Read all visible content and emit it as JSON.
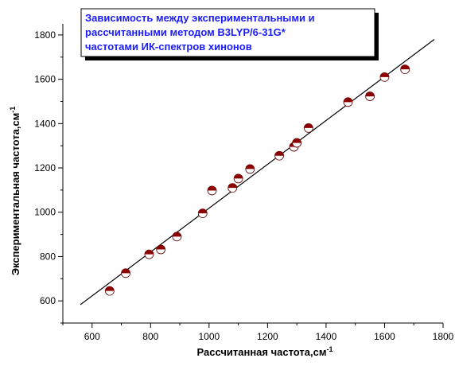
{
  "chart_data": {
    "type": "scatter",
    "title_lines": [
      "Зависимость между экспериментальными и",
      "рассчитанными методом B3LYP/6-31G*",
      "частотами ИК-спектров хинонов"
    ],
    "xlabel": "Рассчитанная частота,см",
    "xlabel_sup": "-1",
    "ylabel": "Экспериментальная частота,см",
    "ylabel_sup": "-1",
    "xlim": [
      500,
      1800
    ],
    "ylim": [
      500,
      1850
    ],
    "x_ticks": [
      600,
      800,
      1000,
      1200,
      1400,
      1600,
      1800
    ],
    "y_ticks": [
      600,
      800,
      1000,
      1200,
      1400,
      1600,
      1800
    ],
    "x_tick_labels": [
      "600",
      "800",
      "1000",
      "1200",
      "1400",
      "1600",
      "1800"
    ],
    "y_tick_labels": [
      "600",
      "800",
      "1000",
      "1200",
      "1400",
      "1600",
      "1800"
    ],
    "points": [
      {
        "x": 660,
        "y": 645
      },
      {
        "x": 715,
        "y": 725
      },
      {
        "x": 795,
        "y": 810
      },
      {
        "x": 835,
        "y": 832
      },
      {
        "x": 890,
        "y": 890
      },
      {
        "x": 978,
        "y": 995
      },
      {
        "x": 1010,
        "y": 1098
      },
      {
        "x": 1080,
        "y": 1110
      },
      {
        "x": 1100,
        "y": 1152
      },
      {
        "x": 1140,
        "y": 1195
      },
      {
        "x": 1240,
        "y": 1255
      },
      {
        "x": 1290,
        "y": 1295
      },
      {
        "x": 1300,
        "y": 1313
      },
      {
        "x": 1340,
        "y": 1380
      },
      {
        "x": 1475,
        "y": 1497
      },
      {
        "x": 1550,
        "y": 1523
      },
      {
        "x": 1600,
        "y": 1610
      },
      {
        "x": 1670,
        "y": 1645
      }
    ],
    "fit_line": {
      "x": [
        560,
        1770
      ],
      "y": [
        583,
        1780
      ]
    },
    "grid": false,
    "colors": {
      "marker_fill": "#8b0000",
      "marker_edge": "#5a0000",
      "line": "#000000",
      "title": "#1a1aff"
    }
  }
}
